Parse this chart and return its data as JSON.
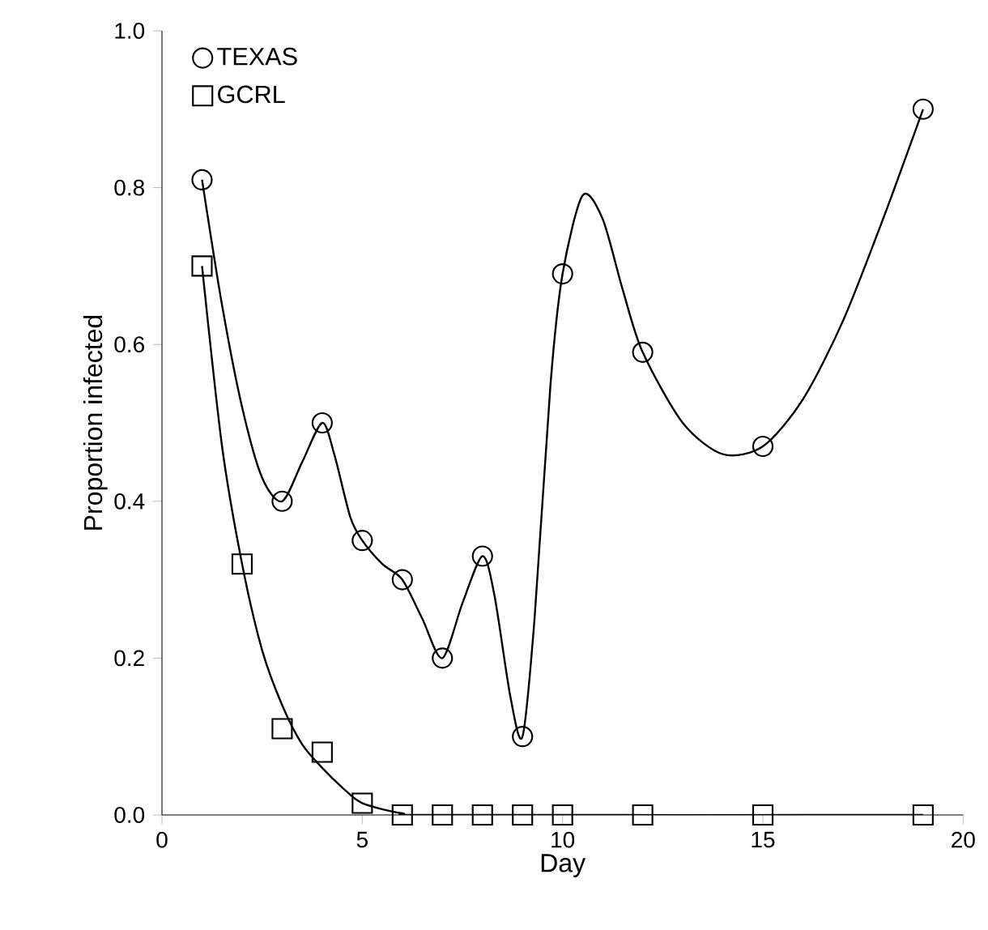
{
  "chart_data": {
    "type": "scatter",
    "xlabel": "Day",
    "ylabel": "Proportion infected",
    "xlim": [
      0,
      20
    ],
    "ylim": [
      0,
      1
    ],
    "xticks": [
      0,
      5,
      10,
      15,
      20
    ],
    "yticks": [
      {
        "value": 0,
        "label": "0.0"
      },
      {
        "value": 0.2,
        "label": "0.2"
      },
      {
        "value": 0.4,
        "label": "0.4"
      },
      {
        "value": 0.6,
        "label": "0.6"
      },
      {
        "value": 0.8,
        "label": "0.8"
      },
      {
        "value": 1,
        "label": "1.0"
      }
    ],
    "legend": "top left",
    "grid": false,
    "series": [
      {
        "name": "TEXAS",
        "marker": "circle",
        "color": "#000000",
        "x": [
          1,
          3,
          4,
          5,
          6,
          7,
          8,
          9,
          10,
          12,
          15,
          19
        ],
        "values": [
          0.81,
          0.4,
          0.5,
          0.35,
          0.3,
          0.2,
          0.33,
          0.1,
          0.69,
          0.59,
          0.47,
          0.9
        ]
      },
      {
        "name": "GCRL",
        "marker": "square",
        "color": "#000000",
        "x": [
          1,
          2,
          3,
          4,
          5,
          6,
          7,
          8,
          9,
          10,
          12,
          15,
          19
        ],
        "values": [
          0.7,
          0.32,
          0.11,
          0.08,
          0.015,
          0,
          0,
          0,
          0,
          0,
          0,
          0,
          0
        ]
      },
      {
        "type": "line",
        "marker": "none",
        "color": "#000000",
        "x": [
          1,
          1.5,
          2,
          2.5,
          3,
          3.5,
          4,
          4.3,
          4.7,
          5,
          5.5,
          6,
          6.5,
          7,
          7.5,
          8,
          8.3,
          8.7,
          9,
          9.3,
          9.7,
          10,
          10.5,
          11,
          11.5,
          12,
          13,
          14,
          15,
          16,
          17,
          18,
          19
        ],
        "values": [
          0.81,
          0.65,
          0.52,
          0.43,
          0.4,
          0.45,
          0.5,
          0.46,
          0.38,
          0.35,
          0.32,
          0.3,
          0.25,
          0.2,
          0.27,
          0.33,
          0.28,
          0.15,
          0.1,
          0.25,
          0.55,
          0.69,
          0.79,
          0.76,
          0.67,
          0.59,
          0.5,
          0.46,
          0.47,
          0.53,
          0.63,
          0.76,
          0.9
        ]
      },
      {
        "type": "line",
        "marker": "none",
        "color": "#000000",
        "x": [
          1,
          1.5,
          2,
          2.5,
          3,
          3.5,
          4,
          4.5,
          5,
          6,
          7,
          19
        ],
        "values": [
          0.7,
          0.47,
          0.32,
          0.21,
          0.14,
          0.09,
          0.06,
          0.035,
          0.015,
          0.002,
          0,
          0
        ]
      }
    ]
  }
}
